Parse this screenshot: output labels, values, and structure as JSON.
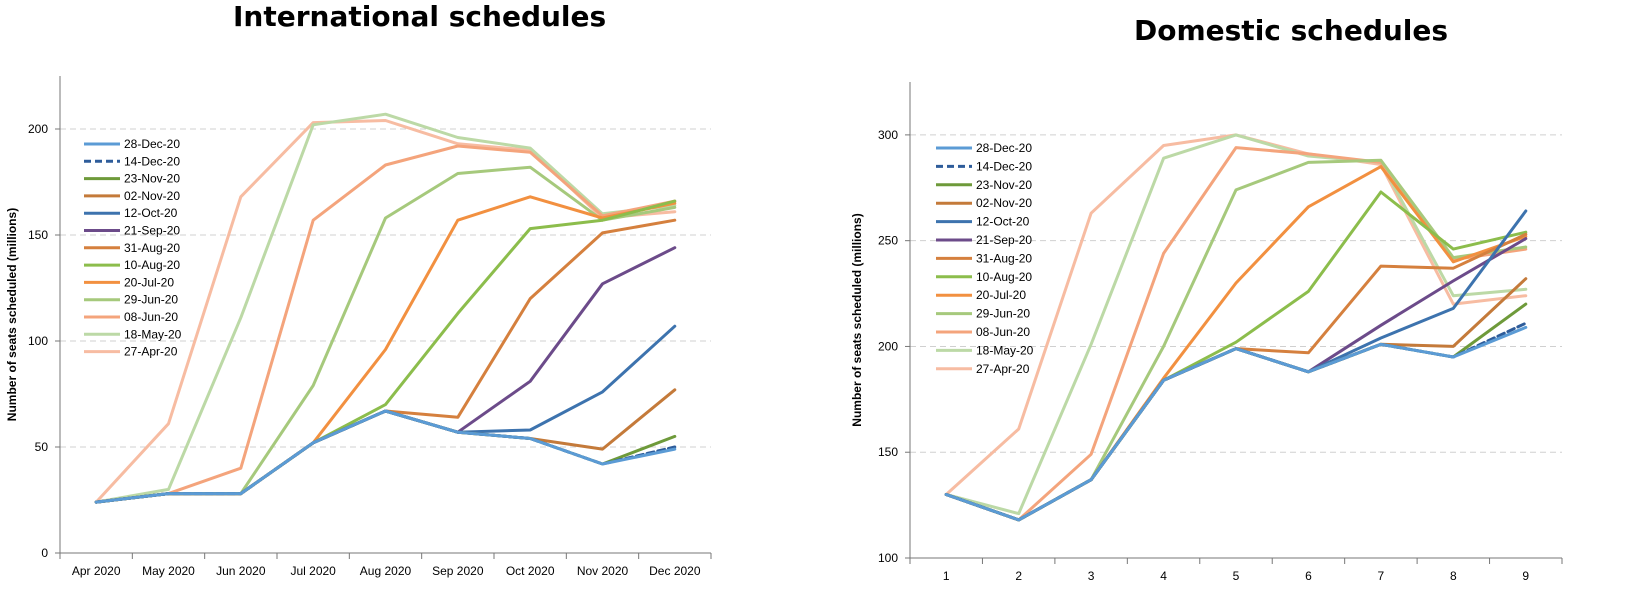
{
  "chart_data": [
    {
      "type": "line",
      "title": "International schedules",
      "xlabel": "",
      "ylabel": "Number of seats scheduled (millions)",
      "categories": [
        "Apr 2020",
        "May 2020",
        "Jun 2020",
        "Jul 2020",
        "Aug 2020",
        "Sep 2020",
        "Oct 2020",
        "Nov 2020",
        "Dec 2020"
      ],
      "ylim": [
        0,
        225
      ],
      "yticks": [
        0,
        50,
        100,
        150,
        200
      ],
      "grid": true,
      "legend": "top-left",
      "series": [
        {
          "name": "28-Dec-20",
          "color": "#5b9bd5",
          "dashed": false,
          "values": [
            24,
            28,
            28,
            52,
            67,
            57,
            54,
            42,
            49
          ]
        },
        {
          "name": "14-Dec-20",
          "color": "#2e5c9a",
          "dashed": true,
          "values": [
            24,
            28,
            28,
            52,
            67,
            57,
            54,
            42,
            50
          ]
        },
        {
          "name": "23-Nov-20",
          "color": "#6e9a3a",
          "dashed": false,
          "values": [
            24,
            28,
            28,
            52,
            67,
            57,
            54,
            42,
            55
          ]
        },
        {
          "name": "02-Nov-20",
          "color": "#c47a3a",
          "dashed": false,
          "values": [
            24,
            28,
            28,
            52,
            67,
            57,
            54,
            49,
            77
          ]
        },
        {
          "name": "12-Oct-20",
          "color": "#3d73ae",
          "dashed": false,
          "values": [
            24,
            28,
            28,
            52,
            67,
            57,
            58,
            76,
            107
          ]
        },
        {
          "name": "21-Sep-20",
          "color": "#6c4b8a",
          "dashed": false,
          "values": [
            24,
            28,
            28,
            52,
            67,
            57,
            81,
            127,
            144
          ]
        },
        {
          "name": "31-Aug-20",
          "color": "#d5803e",
          "dashed": false,
          "values": [
            24,
            28,
            28,
            52,
            67,
            64,
            120,
            151,
            157
          ]
        },
        {
          "name": "10-Aug-20",
          "color": "#8cbd4c",
          "dashed": false,
          "values": [
            24,
            28,
            28,
            52,
            70,
            113,
            153,
            157,
            166
          ]
        },
        {
          "name": "20-Jul-20",
          "color": "#f29040",
          "dashed": false,
          "values": [
            24,
            28,
            28,
            52,
            96,
            157,
            168,
            158,
            165
          ]
        },
        {
          "name": "29-Jun-20",
          "color": "#a6c97c",
          "dashed": false,
          "values": [
            24,
            28,
            28,
            79,
            158,
            179,
            182,
            157,
            163
          ]
        },
        {
          "name": "08-Jun-20",
          "color": "#f4a47c",
          "dashed": false,
          "values": [
            24,
            28,
            40,
            157,
            183,
            192,
            189,
            159,
            166
          ]
        },
        {
          "name": "18-May-20",
          "color": "#bcd9a6",
          "dashed": false,
          "values": [
            24,
            30,
            111,
            202,
            207,
            196,
            191,
            160,
            164
          ]
        },
        {
          "name": "27-Apr-20",
          "color": "#f7bca2",
          "dashed": false,
          "values": [
            24,
            61,
            168,
            203,
            204,
            193,
            190,
            158,
            161
          ]
        }
      ]
    },
    {
      "type": "line",
      "title": "Domestic schedules",
      "xlabel": "",
      "ylabel": "Number of seats scheduled (millions)",
      "categories": [
        "1",
        "2",
        "3",
        "4",
        "5",
        "6",
        "7",
        "8",
        "9"
      ],
      "ylim": [
        100,
        325
      ],
      "yticks": [
        100,
        150,
        200,
        250,
        300
      ],
      "grid": true,
      "legend": "top-left",
      "series": [
        {
          "name": "28-Dec-20",
          "color": "#5b9bd5",
          "dashed": false,
          "values": [
            130,
            118,
            137,
            184,
            199,
            188,
            201,
            195,
            209
          ]
        },
        {
          "name": "14-Dec-20",
          "color": "#2e5c9a",
          "dashed": true,
          "values": [
            130,
            118,
            137,
            184,
            199,
            188,
            201,
            195,
            211
          ]
        },
        {
          "name": "23-Nov-20",
          "color": "#6e9a3a",
          "dashed": false,
          "values": [
            130,
            118,
            137,
            184,
            199,
            188,
            201,
            195,
            220
          ]
        },
        {
          "name": "02-Nov-20",
          "color": "#c47a3a",
          "dashed": false,
          "values": [
            130,
            118,
            137,
            184,
            199,
            188,
            201,
            200,
            232
          ]
        },
        {
          "name": "12-Oct-20",
          "color": "#3d73ae",
          "dashed": false,
          "values": [
            130,
            118,
            137,
            184,
            199,
            188,
            204,
            218,
            264
          ]
        },
        {
          "name": "21-Sep-20",
          "color": "#6c4b8a",
          "dashed": false,
          "values": [
            130,
            118,
            137,
            184,
            199,
            188,
            210,
            231,
            251
          ]
        },
        {
          "name": "31-Aug-20",
          "color": "#d5803e",
          "dashed": false,
          "values": [
            130,
            118,
            137,
            184,
            199,
            197,
            238,
            237,
            253
          ]
        },
        {
          "name": "10-Aug-20",
          "color": "#8cbd4c",
          "dashed": false,
          "values": [
            130,
            118,
            137,
            184,
            202,
            226,
            273,
            246,
            254
          ]
        },
        {
          "name": "20-Jul-20",
          "color": "#f29040",
          "dashed": false,
          "values": [
            130,
            118,
            137,
            185,
            230,
            266,
            285,
            240,
            252
          ]
        },
        {
          "name": "29-Jun-20",
          "color": "#a6c97c",
          "dashed": false,
          "values": [
            130,
            118,
            137,
            200,
            274,
            287,
            288,
            242,
            247
          ]
        },
        {
          "name": "08-Jun-20",
          "color": "#f4a47c",
          "dashed": false,
          "values": [
            130,
            118,
            149,
            244,
            294,
            291,
            287,
            241,
            246
          ]
        },
        {
          "name": "18-May-20",
          "color": "#bcd9a6",
          "dashed": false,
          "values": [
            130,
            121,
            201,
            289,
            300,
            290,
            287,
            224,
            227
          ]
        },
        {
          "name": "27-Apr-20",
          "color": "#f7bca2",
          "dashed": false,
          "values": [
            130,
            161,
            263,
            295,
            300,
            291,
            286,
            220,
            224
          ]
        }
      ]
    }
  ]
}
